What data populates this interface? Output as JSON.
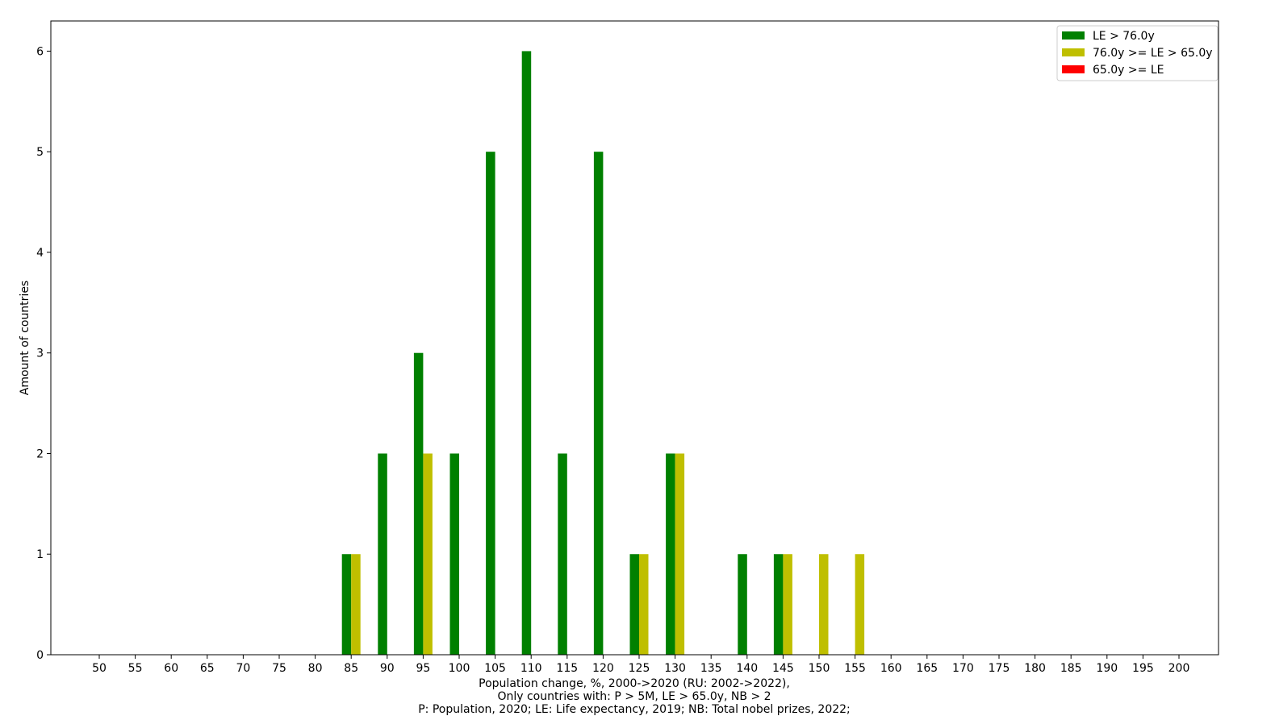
{
  "chart_data": {
    "type": "bar",
    "xlabel_lines": [
      "Population change, %, 2000->2020 (RU: 2002->2022),",
      "Only countries with:  P > 5M, LE > 65.0y, NB > 2",
      "P: Population, 2020; LE: Life expectancy, 2019; NB: Total nobel prizes, 2022;"
    ],
    "ylabel": "Amount of countries",
    "categories": [
      "50",
      "55",
      "60",
      "65",
      "70",
      "75",
      "80",
      "85",
      "90",
      "95",
      "100",
      "105",
      "110",
      "115",
      "120",
      "125",
      "130",
      "135",
      "140",
      "145",
      "150",
      "155",
      "160",
      "165",
      "170",
      "175",
      "180",
      "185",
      "190",
      "195",
      "200"
    ],
    "ylim": [
      0,
      6.3
    ],
    "yticks": [
      0,
      1,
      2,
      3,
      4,
      5,
      6
    ],
    "grid": false,
    "legend_position": "top-right",
    "series": [
      {
        "name": "LE > 76.0y",
        "color": "#008000",
        "values": [
          0,
          0,
          0,
          0,
          0,
          0,
          0,
          1,
          2,
          3,
          2,
          5,
          6,
          2,
          5,
          1,
          2,
          0,
          1,
          1,
          0,
          0,
          0,
          0,
          0,
          0,
          0,
          0,
          0,
          0,
          0
        ]
      },
      {
        "name": "76.0y >= LE > 65.0y",
        "color": "#bfbf00",
        "values": [
          0,
          0,
          0,
          0,
          0,
          0,
          0,
          1,
          0,
          2,
          0,
          0,
          0,
          0,
          0,
          1,
          2,
          0,
          0,
          1,
          1,
          1,
          0,
          0,
          0,
          0,
          0,
          0,
          0,
          0,
          0
        ]
      },
      {
        "name": "65.0y >= LE",
        "color": "#ff0000",
        "values": [
          0,
          0,
          0,
          0,
          0,
          0,
          0,
          0,
          0,
          0,
          0,
          0,
          0,
          0,
          0,
          0,
          0,
          0,
          0,
          0,
          0,
          0,
          0,
          0,
          0,
          0,
          0,
          0,
          0,
          0,
          0
        ]
      }
    ]
  }
}
